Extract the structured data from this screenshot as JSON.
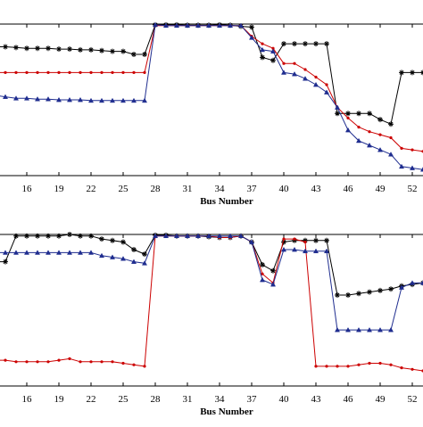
{
  "chart_data": [
    {
      "type": "line",
      "xlabel": "Bus Number",
      "xticks": [
        16,
        19,
        22,
        25,
        28,
        31,
        34,
        37,
        40,
        43,
        46,
        49,
        52
      ],
      "xlim": [
        13.5,
        53
      ],
      "ylim": [
        0,
        1
      ],
      "y_tick_labels_visible": false,
      "series": [
        {
          "color": "#000000",
          "marker": "star",
          "x": [
            13,
            14,
            15,
            16,
            17,
            18,
            19,
            20,
            21,
            22,
            23,
            24,
            25,
            26,
            27,
            28,
            29,
            30,
            31,
            32,
            33,
            34,
            35,
            36,
            37,
            38,
            39,
            40,
            41,
            42,
            43,
            44,
            45,
            46,
            47,
            48,
            49,
            50,
            51,
            52,
            53
          ],
          "values": [
            0.85,
            0.85,
            0.845,
            0.84,
            0.84,
            0.84,
            0.835,
            0.835,
            0.83,
            0.83,
            0.825,
            0.82,
            0.82,
            0.8,
            0.8,
            0.995,
            0.995,
            0.995,
            0.993,
            0.993,
            0.993,
            0.995,
            0.993,
            0.985,
            0.98,
            0.78,
            0.76,
            0.87,
            0.87,
            0.87,
            0.87,
            0.87,
            0.41,
            0.41,
            0.41,
            0.41,
            0.37,
            0.34,
            0.68,
            0.68,
            0.68
          ]
        },
        {
          "color": "#cc0000",
          "marker": "dot",
          "x": [
            13,
            14,
            15,
            16,
            17,
            18,
            19,
            20,
            21,
            22,
            23,
            24,
            25,
            26,
            27,
            28,
            29,
            30,
            31,
            32,
            33,
            34,
            35,
            36,
            37,
            38,
            39,
            40,
            41,
            42,
            43,
            44,
            45,
            46,
            47,
            48,
            49,
            50,
            51,
            52,
            53
          ],
          "values": [
            0.68,
            0.68,
            0.68,
            0.68,
            0.68,
            0.68,
            0.68,
            0.68,
            0.68,
            0.68,
            0.68,
            0.68,
            0.68,
            0.68,
            0.68,
            0.99,
            0.99,
            0.99,
            0.99,
            0.99,
            0.99,
            0.99,
            0.99,
            0.99,
            0.92,
            0.87,
            0.84,
            0.74,
            0.74,
            0.7,
            0.65,
            0.6,
            0.45,
            0.38,
            0.32,
            0.29,
            0.27,
            0.25,
            0.18,
            0.17,
            0.16
          ]
        },
        {
          "color": "#1f2d8f",
          "marker": "triangle",
          "x": [
            13,
            14,
            15,
            16,
            17,
            18,
            19,
            20,
            21,
            22,
            23,
            24,
            25,
            26,
            27,
            28,
            29,
            30,
            31,
            32,
            33,
            34,
            35,
            36,
            37,
            38,
            39,
            40,
            41,
            42,
            43,
            44,
            45,
            46,
            47,
            48,
            49,
            50,
            51,
            52,
            53
          ],
          "values": [
            0.53,
            0.52,
            0.51,
            0.51,
            0.505,
            0.505,
            0.5,
            0.5,
            0.5,
            0.495,
            0.495,
            0.495,
            0.495,
            0.495,
            0.495,
            0.995,
            0.99,
            0.99,
            0.99,
            0.99,
            0.99,
            0.99,
            0.99,
            0.99,
            0.91,
            0.83,
            0.82,
            0.68,
            0.67,
            0.64,
            0.6,
            0.55,
            0.45,
            0.3,
            0.23,
            0.2,
            0.17,
            0.14,
            0.06,
            0.05,
            0.04
          ]
        }
      ]
    },
    {
      "type": "line",
      "xlabel": "Bus Number",
      "xticks": [
        16,
        19,
        22,
        25,
        28,
        31,
        34,
        37,
        40,
        43,
        46,
        49,
        52
      ],
      "xlim": [
        13.5,
        53
      ],
      "ylim": [
        0,
        1
      ],
      "y_tick_labels_visible": false,
      "series": [
        {
          "color": "#000000",
          "marker": "star",
          "x": [
            13,
            14,
            15,
            16,
            17,
            18,
            19,
            20,
            21,
            22,
            23,
            24,
            25,
            26,
            27,
            28,
            29,
            30,
            31,
            32,
            33,
            34,
            35,
            36,
            37,
            38,
            39,
            40,
            41,
            42,
            43,
            44,
            45,
            46,
            47,
            48,
            49,
            50,
            51,
            52,
            53
          ],
          "values": [
            0.82,
            0.82,
            0.99,
            0.99,
            0.99,
            0.99,
            0.99,
            1.0,
            0.99,
            0.99,
            0.97,
            0.96,
            0.95,
            0.9,
            0.87,
            0.995,
            0.995,
            0.99,
            0.99,
            0.99,
            0.985,
            0.98,
            0.98,
            0.99,
            0.95,
            0.8,
            0.76,
            0.95,
            0.96,
            0.96,
            0.96,
            0.96,
            0.6,
            0.6,
            0.61,
            0.62,
            0.63,
            0.64,
            0.66,
            0.67,
            0.68
          ]
        },
        {
          "color": "#cc0000",
          "marker": "dot",
          "x": [
            13,
            14,
            15,
            16,
            17,
            18,
            19,
            20,
            21,
            22,
            23,
            24,
            25,
            26,
            27,
            28,
            29,
            30,
            31,
            32,
            33,
            34,
            35,
            36,
            37,
            38,
            39,
            40,
            41,
            42,
            43,
            44,
            45,
            46,
            47,
            48,
            49,
            50,
            51,
            52,
            53
          ],
          "values": [
            0.17,
            0.17,
            0.16,
            0.16,
            0.16,
            0.16,
            0.17,
            0.18,
            0.16,
            0.16,
            0.16,
            0.16,
            0.15,
            0.14,
            0.13,
            0.99,
            0.99,
            0.99,
            0.99,
            0.99,
            0.99,
            0.98,
            0.98,
            0.99,
            0.95,
            0.74,
            0.68,
            0.97,
            0.97,
            0.95,
            0.13,
            0.13,
            0.13,
            0.13,
            0.14,
            0.15,
            0.15,
            0.14,
            0.12,
            0.11,
            0.1
          ]
        },
        {
          "color": "#1f2d8f",
          "marker": "triangle",
          "x": [
            13,
            14,
            15,
            16,
            17,
            18,
            19,
            20,
            21,
            22,
            23,
            24,
            25,
            26,
            27,
            28,
            29,
            30,
            31,
            32,
            33,
            34,
            35,
            36,
            37,
            38,
            39,
            40,
            41,
            42,
            43,
            44,
            45,
            46,
            47,
            48,
            49,
            50,
            51,
            52,
            53
          ],
          "values": [
            0.88,
            0.88,
            0.88,
            0.88,
            0.88,
            0.88,
            0.88,
            0.88,
            0.88,
            0.88,
            0.86,
            0.85,
            0.84,
            0.82,
            0.81,
            0.99,
            0.99,
            0.99,
            0.99,
            0.99,
            0.99,
            0.99,
            0.99,
            0.99,
            0.95,
            0.7,
            0.67,
            0.9,
            0.9,
            0.89,
            0.89,
            0.89,
            0.37,
            0.37,
            0.37,
            0.37,
            0.37,
            0.37,
            0.65,
            0.68,
            0.68
          ]
        }
      ]
    }
  ]
}
